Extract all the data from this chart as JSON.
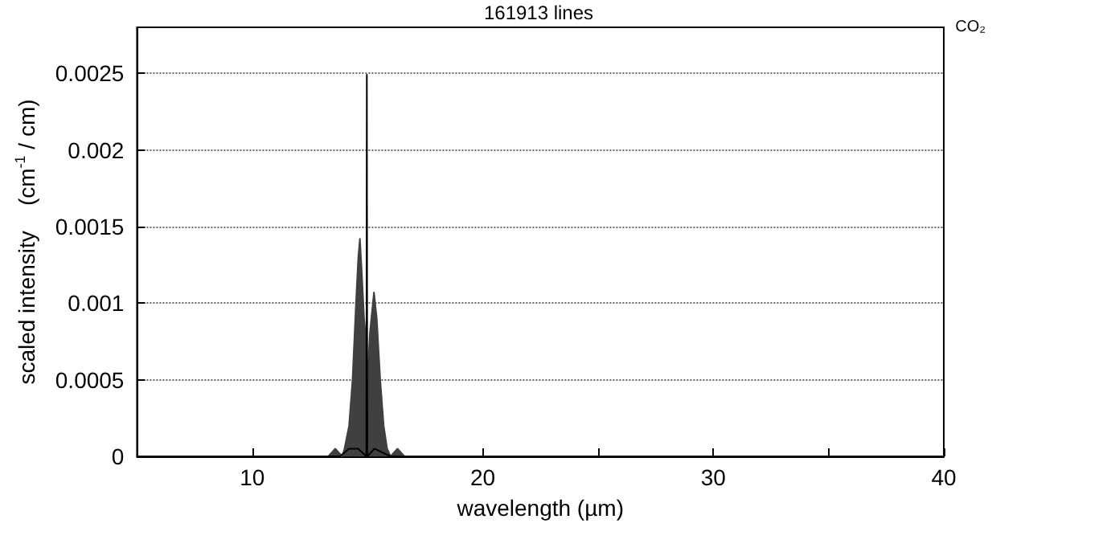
{
  "chart_data": {
    "type": "line",
    "title": "161913 lines",
    "xlabel": "wavelength (µm)",
    "ylabel": "scaled intensity    (cm$^{-1}$ / cm)",
    "annotations": [
      "CO₂"
    ],
    "xlim": [
      5,
      40
    ],
    "xticks": [
      {
        "value": 5,
        "label": null
      },
      10,
      {
        "value": 15,
        "label": null
      },
      20,
      {
        "value": 25,
        "label": null
      },
      30,
      {
        "value": 35,
        "label": null
      },
      40
    ],
    "ylim": [
      0,
      0.0028
    ],
    "yticks": [
      0,
      0.0005,
      0.001,
      0.0015,
      0.002,
      0.0025
    ],
    "grid": "y",
    "series": [
      {
        "type": "area",
        "color": "#404040",
        "x": [
          5,
          13.3,
          13.6,
          13.9,
          14.0,
          14.2,
          14.35,
          14.5,
          14.6,
          14.67,
          14.75,
          14.85,
          14.93,
          15.0,
          15.1,
          15.28,
          15.4,
          15.55,
          15.7,
          15.85,
          16.0,
          16.3,
          16.6,
          40
        ],
        "values": [
          0,
          0,
          5e-05,
          0,
          5e-05,
          0.0002,
          0.0005,
          0.001,
          0.0013,
          0.00142,
          0.0012,
          0.0009,
          0.00077,
          0.0005,
          0.0008,
          0.00107,
          0.0009,
          0.0005,
          0.0002,
          5e-05,
          0,
          5e-05,
          0,
          0
        ]
      },
      {
        "color": "#000000",
        "x": [
          5,
          13.8,
          14.2,
          14.6,
          14.95,
          14.97,
          14.99,
          15.3,
          16,
          40
        ],
        "values": [
          0,
          0,
          5e-05,
          5e-05,
          0,
          0.00249,
          0,
          5e-05,
          0,
          0
        ]
      }
    ]
  }
}
